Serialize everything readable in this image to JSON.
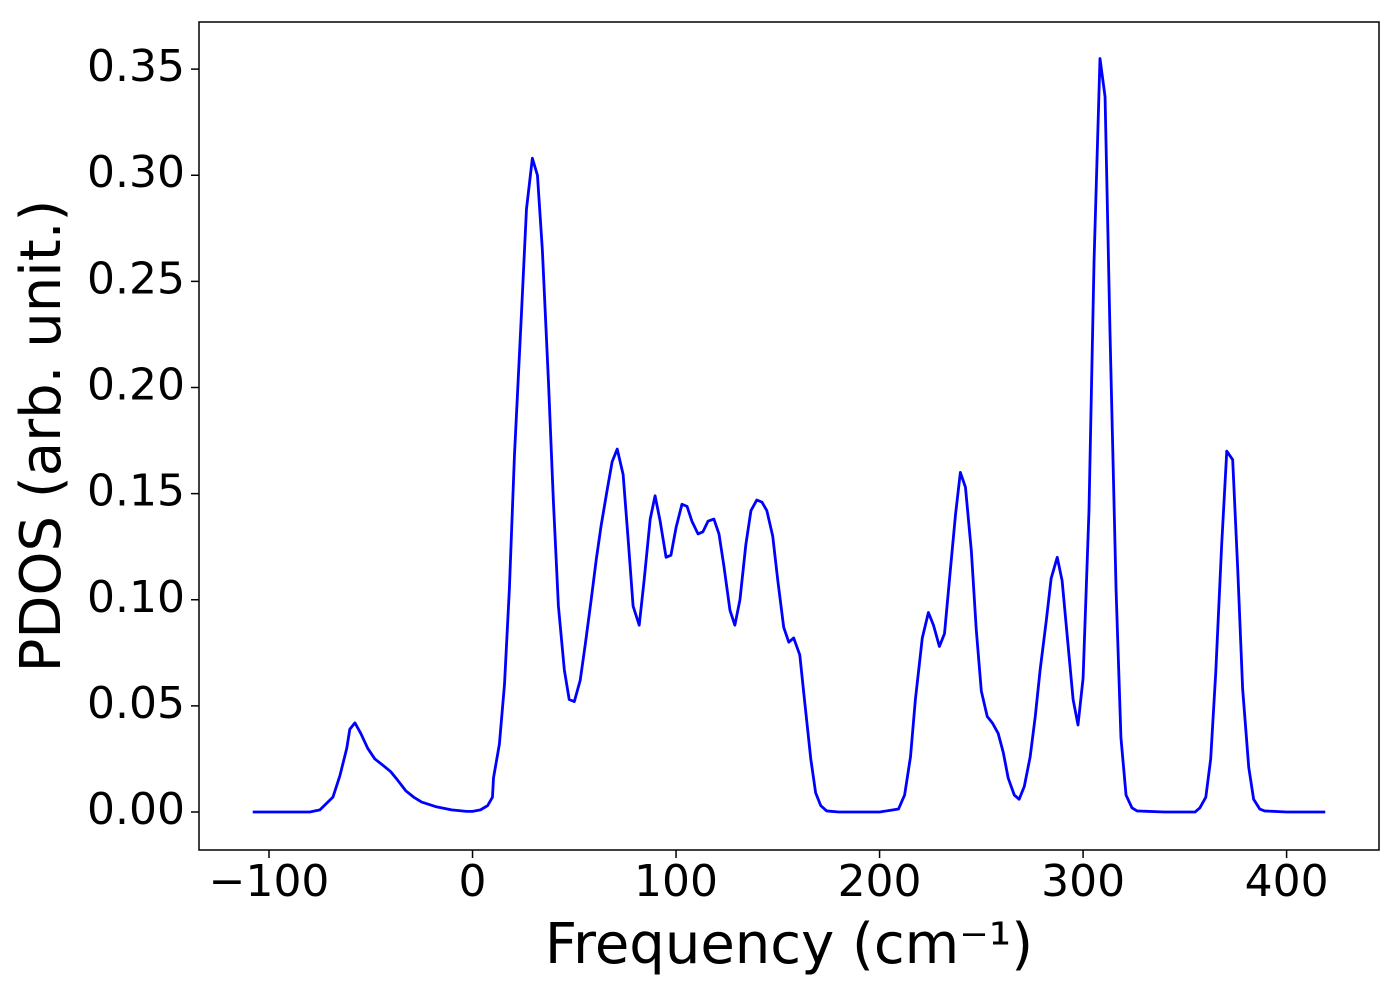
{
  "chart_data": {
    "type": "line",
    "xlabel": "Frequency (cm⁻¹)",
    "ylabel": "PDOS (arb. unit.)",
    "color": "#0000ff",
    "x": [
      -108,
      -80,
      -75,
      -68.6,
      -65.2,
      -61.8,
      -60.3,
      -57.8,
      -54.9,
      -51.5,
      -48,
      -44,
      -40.2,
      -36.8,
      -32.8,
      -28.9,
      -25,
      -17.6,
      -10.3,
      -3,
      0,
      3.9,
      7.4,
      9.8,
      10.3,
      13.2,
      15.7,
      18.1,
      20.6,
      24,
      26.5,
      29.4,
      31.9,
      34.3,
      37.3,
      39.7,
      42.2,
      45.1,
      47.5,
      50,
      52.9,
      55.4,
      58.3,
      60.8,
      63.2,
      66.2,
      68.6,
      71.1,
      74,
      76.5,
      78.9,
      81.9,
      84.3,
      87.3,
      89.7,
      92.2,
      95.1,
      97.5,
      100,
      102.9,
      105.4,
      107.8,
      110.8,
      113.2,
      115.7,
      118.6,
      121.1,
      123.5,
      126.5,
      128.9,
      131.4,
      134.3,
      136.8,
      139.7,
      142.2,
      144.6,
      147.5,
      150,
      152.9,
      155.4,
      157.8,
      160.8,
      163.2,
      166.2,
      168.6,
      171.1,
      174,
      180,
      200,
      209.3,
      212.3,
      215.2,
      217.6,
      221,
      224,
      226.5,
      229.4,
      231.9,
      234.3,
      237.3,
      239.7,
      242.2,
      245.1,
      247.5,
      250,
      252.9,
      255.4,
      258.3,
      260.8,
      263.2,
      266.2,
      268.6,
      271.1,
      274,
      276.5,
      278.9,
      281.9,
      284.3,
      287.3,
      289.7,
      292.2,
      295.1,
      297.5,
      300,
      302.9,
      305.4,
      308.3,
      310.8,
      313.2,
      316.2,
      318.6,
      321.1,
      324,
      326.5,
      340,
      355,
      357.4,
      360.3,
      362.7,
      365.2,
      368.1,
      370.6,
      373.5,
      376,
      378.4,
      381.4,
      383.8,
      386.8,
      389.2,
      400,
      419
    ],
    "values": [
      0,
      0,
      0.001,
      0.007,
      0.017,
      0.03,
      0.039,
      0.042,
      0.037,
      0.03,
      0.025,
      0.022,
      0.019,
      0.015,
      0.01,
      0.007,
      0.0047,
      0.0024,
      0.001,
      0.0003,
      0.0003,
      0.001,
      0.003,
      0.007,
      0.016,
      0.032,
      0.06,
      0.105,
      0.168,
      0.234,
      0.284,
      0.308,
      0.3,
      0.265,
      0.203,
      0.147,
      0.097,
      0.067,
      0.053,
      0.052,
      0.062,
      0.079,
      0.1,
      0.119,
      0.135,
      0.152,
      0.165,
      0.171,
      0.159,
      0.128,
      0.097,
      0.088,
      0.109,
      0.138,
      0.149,
      0.137,
      0.12,
      0.121,
      0.134,
      0.145,
      0.144,
      0.137,
      0.131,
      0.132,
      0.137,
      0.138,
      0.131,
      0.116,
      0.095,
      0.088,
      0.1,
      0.126,
      0.142,
      0.147,
      0.146,
      0.142,
      0.13,
      0.109,
      0.087,
      0.08,
      0.082,
      0.074,
      0.052,
      0.025,
      0.009,
      0.003,
      0.0005,
      0,
      0,
      0.0014,
      0.008,
      0.026,
      0.053,
      0.082,
      0.094,
      0.088,
      0.078,
      0.084,
      0.109,
      0.14,
      0.16,
      0.153,
      0.123,
      0.086,
      0.057,
      0.045,
      0.042,
      0.037,
      0.028,
      0.016,
      0.008,
      0.006,
      0.012,
      0.026,
      0.045,
      0.067,
      0.09,
      0.11,
      0.12,
      0.109,
      0.083,
      0.053,
      0.041,
      0.063,
      0.142,
      0.26,
      0.355,
      0.337,
      0.227,
      0.105,
      0.035,
      0.008,
      0.002,
      0.0005,
      0,
      0,
      0.002,
      0.007,
      0.025,
      0.066,
      0.126,
      0.17,
      0.166,
      0.114,
      0.058,
      0.021,
      0.006,
      0.0014,
      0.0005,
      0,
      0
    ],
    "xlim": [
      -134.4,
      445.4
    ],
    "ylim": [
      -0.0179,
      0.3722
    ],
    "xticks": [
      {
        "value": -100,
        "label": "−100"
      },
      0,
      100,
      200,
      300,
      400
    ],
    "yticks": [
      {
        "value": 0,
        "label": "0.00"
      },
      {
        "value": 0.05,
        "label": "0.05"
      },
      {
        "value": 0.1,
        "label": "0.10"
      },
      {
        "value": 0.15,
        "label": "0.15"
      },
      {
        "value": 0.2,
        "label": "0.20"
      },
      {
        "value": 0.25,
        "label": "0.25"
      },
      {
        "value": 0.3,
        "label": "0.30"
      },
      {
        "value": 0.35,
        "label": "0.35"
      }
    ]
  }
}
